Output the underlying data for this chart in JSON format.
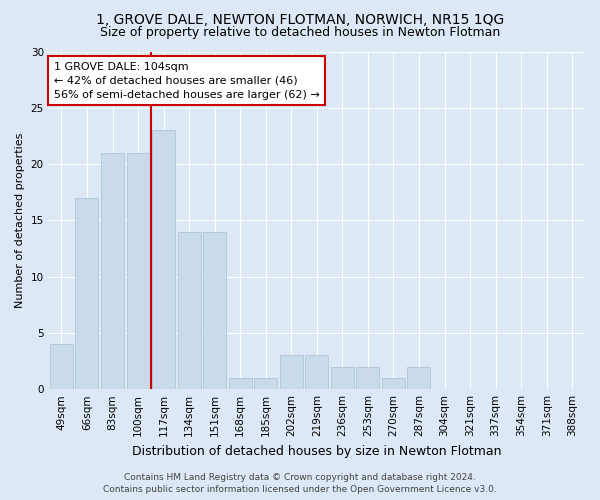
{
  "title": "1, GROVE DALE, NEWTON FLOTMAN, NORWICH, NR15 1QG",
  "subtitle": "Size of property relative to detached houses in Newton Flotman",
  "xlabel": "Distribution of detached houses by size in Newton Flotman",
  "ylabel": "Number of detached properties",
  "categories": [
    "49sqm",
    "66sqm",
    "83sqm",
    "100sqm",
    "117sqm",
    "134sqm",
    "151sqm",
    "168sqm",
    "185sqm",
    "202sqm",
    "219sqm",
    "236sqm",
    "253sqm",
    "270sqm",
    "287sqm",
    "304sqm",
    "321sqm",
    "337sqm",
    "354sqm",
    "371sqm",
    "388sqm"
  ],
  "values": [
    4,
    17,
    21,
    21,
    23,
    14,
    14,
    1,
    1,
    3,
    3,
    2,
    2,
    1,
    2,
    0,
    0,
    0,
    0,
    0,
    0
  ],
  "bar_color": "#c9daea",
  "bar_edge_color": "#aec6d8",
  "vline_x": 3.5,
  "vline_color": "#cc0000",
  "annotation_text": "1 GROVE DALE: 104sqm\n← 42% of detached houses are smaller (46)\n56% of semi-detached houses are larger (62) →",
  "annotation_box_facecolor": "#ffffff",
  "annotation_box_edgecolor": "#cc0000",
  "ylim": [
    0,
    30
  ],
  "yticks": [
    0,
    5,
    10,
    15,
    20,
    25,
    30
  ],
  "footer1": "Contains HM Land Registry data © Crown copyright and database right 2024.",
  "footer2": "Contains public sector information licensed under the Open Government Licence v3.0.",
  "background_color": "#dce8f5",
  "plot_background": "#dce8f5",
  "title_fontsize": 10,
  "subtitle_fontsize": 9,
  "ylabel_fontsize": 8,
  "xlabel_fontsize": 9,
  "tick_fontsize": 7.5,
  "annotation_fontsize": 8,
  "footer_fontsize": 6.5
}
